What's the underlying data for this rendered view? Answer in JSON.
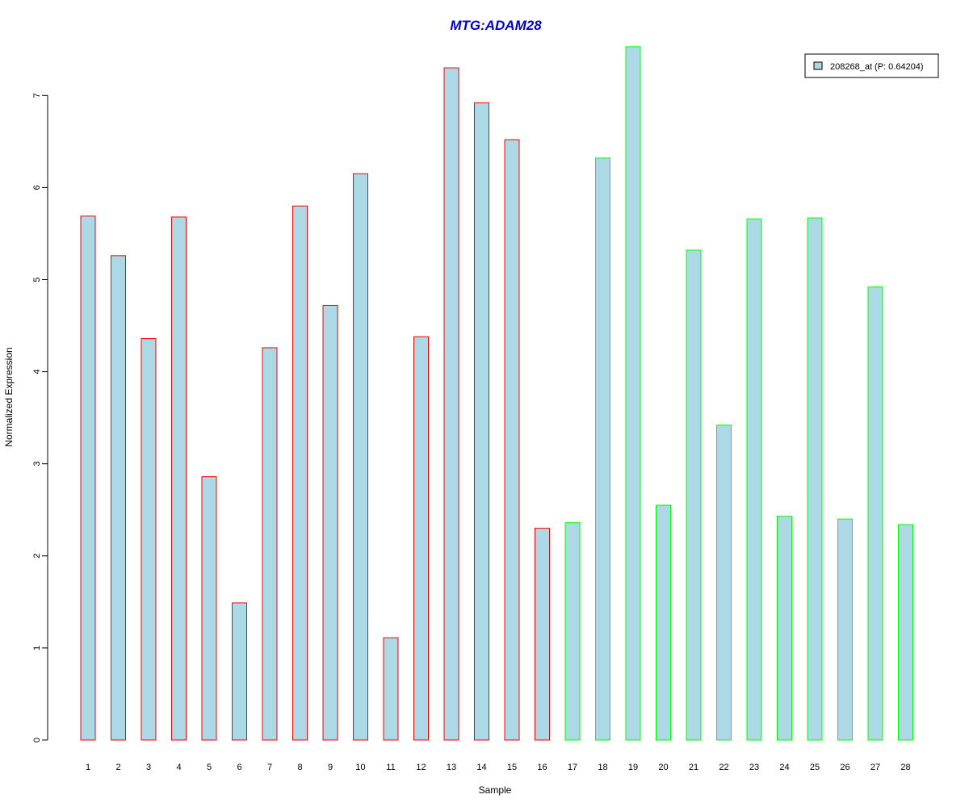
{
  "chart_data": {
    "type": "bar",
    "title": "MTG:ADAM28",
    "xlabel": "Sample",
    "ylabel": "Normalized Expression",
    "ylim": [
      0,
      7.5
    ],
    "yticks": [
      0,
      1,
      2,
      3,
      4,
      5,
      6,
      7
    ],
    "categories": [
      "1",
      "2",
      "3",
      "4",
      "5",
      "6",
      "7",
      "8",
      "9",
      "10",
      "11",
      "12",
      "13",
      "14",
      "15",
      "16",
      "17",
      "18",
      "19",
      "20",
      "21",
      "22",
      "23",
      "24",
      "25",
      "26",
      "27",
      "28"
    ],
    "values": [
      5.69,
      5.26,
      4.36,
      5.68,
      2.86,
      1.49,
      4.26,
      5.8,
      4.72,
      6.15,
      1.11,
      4.38,
      7.3,
      6.92,
      6.52,
      2.3,
      2.36,
      6.32,
      7.53,
      2.55,
      5.32,
      3.42,
      5.66,
      2.43,
      5.67,
      2.4,
      4.92,
      2.34
    ],
    "groups": [
      "1",
      "1",
      "1",
      "1",
      "1",
      "1",
      "1",
      "1",
      "1",
      "1",
      "1",
      "1",
      "1",
      "1",
      "1",
      "1",
      "2",
      "2",
      "2",
      "2",
      "2",
      "2",
      "2",
      "2",
      "2",
      "2",
      "2",
      "2"
    ],
    "colors": {
      "bar_fill": "#add8e6",
      "group_1_border": "#ff0000",
      "group_2_border": "#00ff00",
      "title": "#0000cc"
    },
    "legend": {
      "label": "208268_at (P: 0.64204)",
      "placement": "top-right"
    },
    "grid": false
  }
}
